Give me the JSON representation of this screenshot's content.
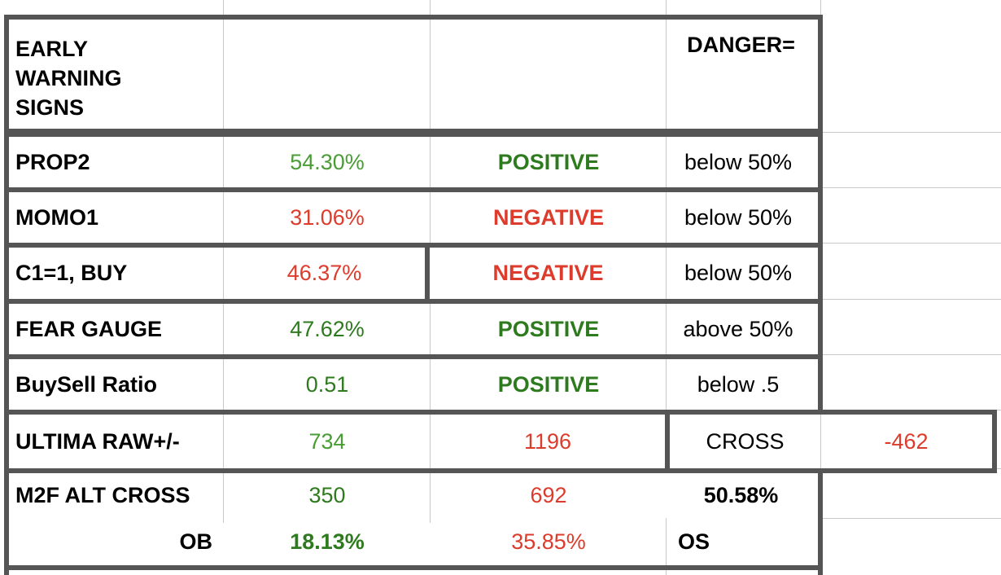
{
  "header": {
    "title_line1": "EARLY",
    "title_line2": "WARNING",
    "title_line3": "SIGNS",
    "danger_label": "DANGER="
  },
  "rows": [
    {
      "label": "PROP2",
      "value": "54.30%",
      "signal": "POSITIVE",
      "danger": "below 50%"
    },
    {
      "label": "MOMO1",
      "value": "31.06%",
      "signal": "NEGATIVE",
      "danger": "below 50%"
    },
    {
      "label": "C1=1, BUY",
      "value": "46.37%",
      "signal": "NEGATIVE",
      "danger": "below 50%"
    },
    {
      "label": "FEAR GAUGE",
      "value": "47.62%",
      "signal": "POSITIVE",
      "danger": "above 50%"
    },
    {
      "label": "BuySell Ratio",
      "value": "0.51",
      "signal": "POSITIVE",
      "danger": "below .5"
    }
  ],
  "ultima": {
    "label": "ULTIMA RAW+/-",
    "plus": "734",
    "minus": "1196",
    "cross_label": "CROSS",
    "cross_value": "-462"
  },
  "m2f": {
    "label": "M2F ALT CROSS",
    "plus": "350",
    "minus": "692",
    "pct": "50.58%"
  },
  "obos": {
    "ob_label": "OB",
    "ob_value": "18.13%",
    "os_value": "35.85%",
    "os_label": "OS"
  },
  "colors": {
    "positive": "#2e7a1e",
    "negative": "#dd3b2b",
    "light_green": "#4a9c35",
    "border": "#555555"
  }
}
